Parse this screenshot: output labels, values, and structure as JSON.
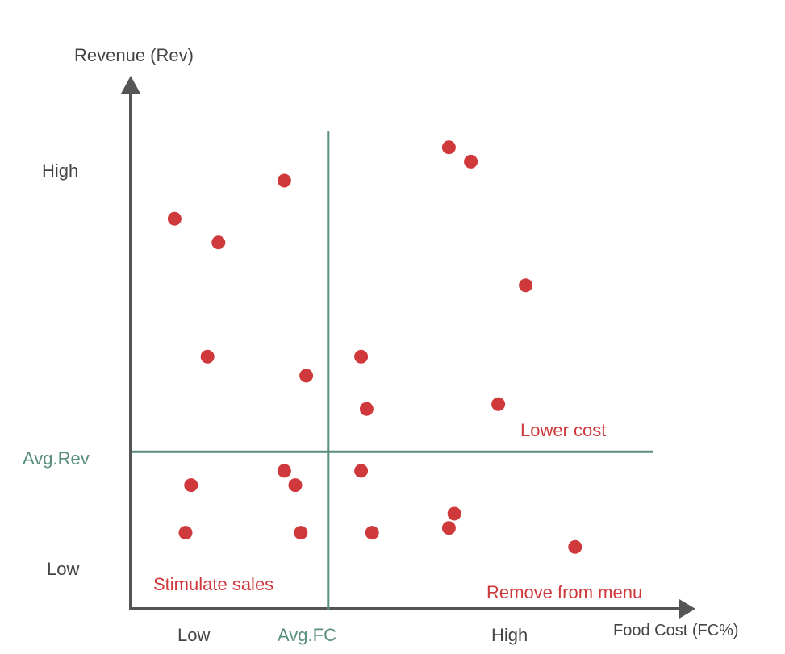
{
  "chart_data": {
    "type": "scatter",
    "ylabel": "Revenue (Rev)",
    "xlabel": "Food Cost (FC%)",
    "x_ticks": {
      "low": "Low",
      "high": "High",
      "avg": "Avg.FC"
    },
    "y_ticks": {
      "high": "High",
      "low": "Low",
      "avg": "Avg.Rev"
    },
    "quadrant_labels": {
      "lower_right": "Remove from menu",
      "upper_right": "Lower cost",
      "lower_left": "Stimulate sales"
    },
    "xlim": [
      0,
      100
    ],
    "ylim": [
      0,
      100
    ],
    "avg_x": 36,
    "avg_y": 33,
    "points": [
      {
        "x": 8,
        "y": 82
      },
      {
        "x": 16,
        "y": 77
      },
      {
        "x": 28,
        "y": 90
      },
      {
        "x": 14,
        "y": 53
      },
      {
        "x": 32,
        "y": 49
      },
      {
        "x": 42,
        "y": 53
      },
      {
        "x": 43,
        "y": 42
      },
      {
        "x": 58,
        "y": 97
      },
      {
        "x": 62,
        "y": 94
      },
      {
        "x": 72,
        "y": 68
      },
      {
        "x": 67,
        "y": 43
      },
      {
        "x": 11,
        "y": 26
      },
      {
        "x": 28,
        "y": 29
      },
      {
        "x": 30,
        "y": 26
      },
      {
        "x": 42,
        "y": 29
      },
      {
        "x": 10,
        "y": 16
      },
      {
        "x": 31,
        "y": 16
      },
      {
        "x": 44,
        "y": 16
      },
      {
        "x": 59,
        "y": 20
      },
      {
        "x": 58,
        "y": 17
      },
      {
        "x": 81,
        "y": 13
      }
    ],
    "grid": false,
    "colors": {
      "axis": "#555555",
      "avg_line": "#5a8f7b",
      "point": "#d0393b",
      "quadrant_text": "#d0393b",
      "label_text": "#444444"
    }
  }
}
